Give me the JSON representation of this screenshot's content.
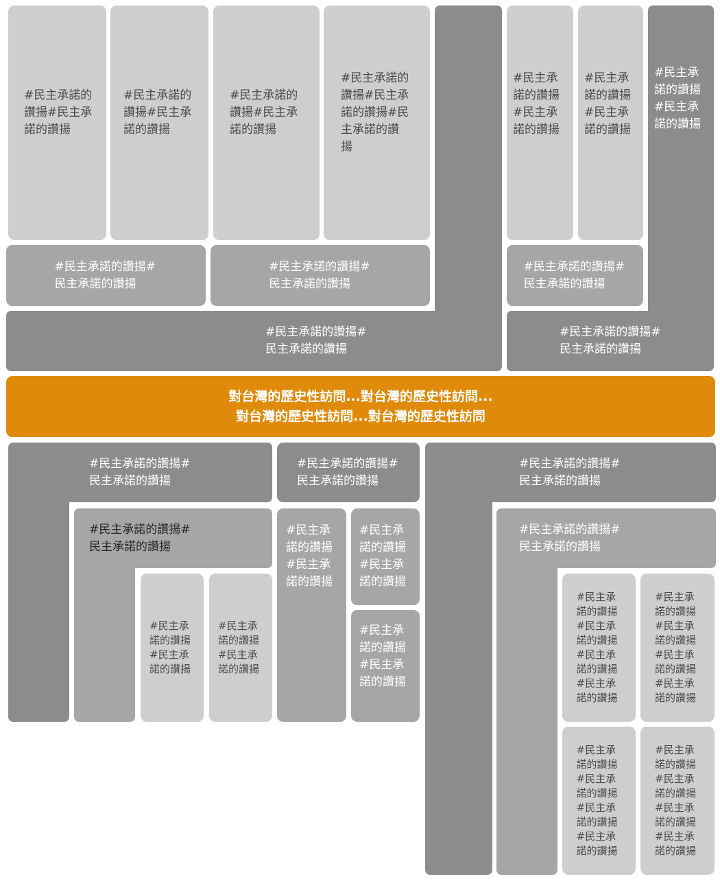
{
  "tag": "#民主承諾的讚揚",
  "tag_x2": "#民主承諾的讚揚#民主承諾的讚揚",
  "tag_x3": "#民主承諾的讚揚#民主承諾的讚揚#民主承諾的讚揚",
  "tag_x4": "#民主承諾的讚揚#民主承諾的讚揚#民主承諾的讚揚#民主承諾的讚揚",
  "banner": {
    "line1": "對台灣的歷史性訪問...對台灣的歷史性訪問...",
    "line2": "對台灣的歷史性訪問...對台灣的歷史性訪問"
  },
  "colors": {
    "light": "#cecece",
    "mid": "#a6a6a6",
    "dark": "#8c8c8c",
    "accent": "#e08a0a"
  }
}
